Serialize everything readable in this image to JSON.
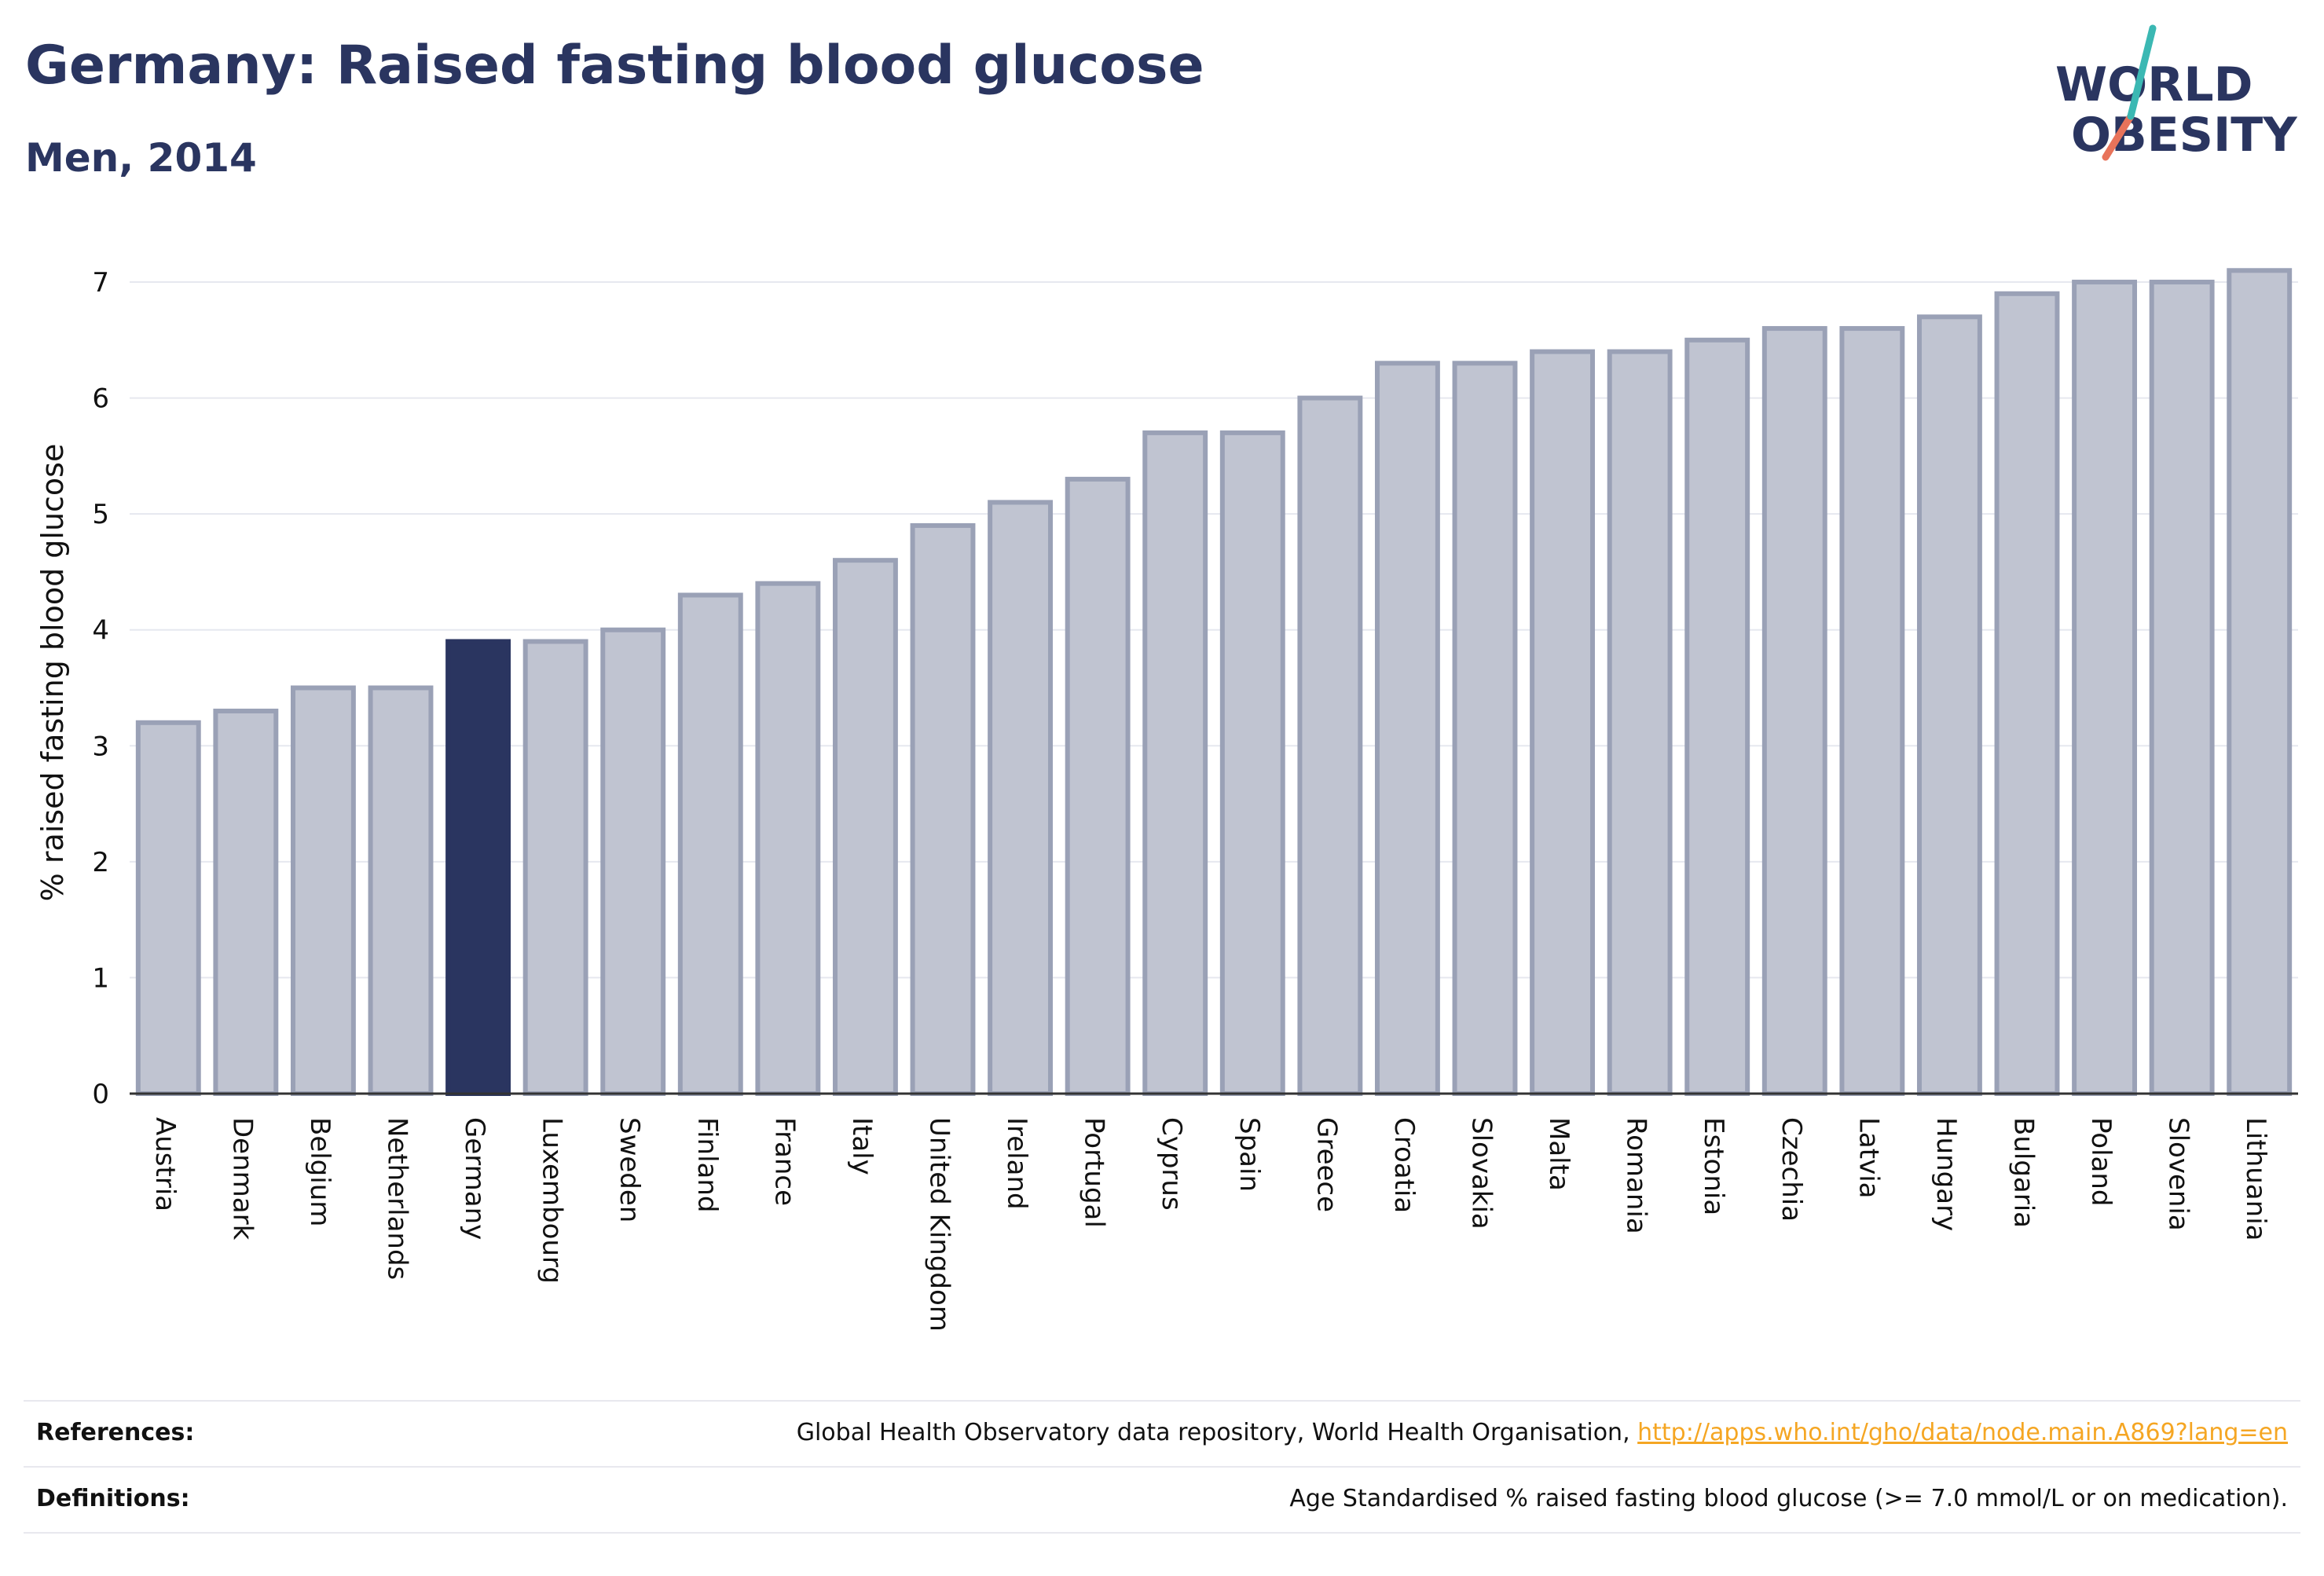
{
  "title": "Germany: Raised fasting blood glucose",
  "subtitle": "Men, 2014",
  "logo": {
    "line1": "WORLD",
    "line2": "OBESITY"
  },
  "colors": {
    "highlight": "#2a3560",
    "bar": "#c0c4d1",
    "bar_border": "#9aa1b6",
    "accent_teal": "#3bb8b3",
    "accent_coral": "#e8735a",
    "link": "#f5a623"
  },
  "chart_data": {
    "type": "bar",
    "title": "Germany: Raised fasting blood glucose",
    "subtitle": "Men, 2014",
    "xlabel": "",
    "ylabel": "% raised fasting blood glucose",
    "ylim": [
      0,
      7.4
    ],
    "yticks": [
      0,
      1,
      2,
      3,
      4,
      5,
      6,
      7
    ],
    "highlight": "Germany",
    "grid": true,
    "categories": [
      "Austria",
      "Denmark",
      "Belgium",
      "Netherlands",
      "Germany",
      "Luxembourg",
      "Sweden",
      "Finland",
      "France",
      "Italy",
      "United Kingdom",
      "Ireland",
      "Portugal",
      "Cyprus",
      "Spain",
      "Greece",
      "Croatia",
      "Slovakia",
      "Malta",
      "Romania",
      "Estonia",
      "Czechia",
      "Latvia",
      "Hungary",
      "Bulgaria",
      "Poland",
      "Slovenia",
      "Lithuania"
    ],
    "values": [
      3.2,
      3.3,
      3.5,
      3.5,
      3.9,
      3.9,
      4.0,
      4.3,
      4.4,
      4.6,
      4.9,
      5.1,
      5.3,
      5.7,
      5.7,
      6.0,
      6.3,
      6.3,
      6.4,
      6.4,
      6.5,
      6.6,
      6.6,
      6.7,
      6.9,
      7.0,
      7.0,
      7.1
    ]
  },
  "footer": {
    "references_label": "References:",
    "references_text": "Global Health Observatory data repository, World Health Organisation, ",
    "references_link": "http://apps.who.int/gho/data/node.main.A869?lang=en",
    "definitions_label": "Definitions:",
    "definitions_text": "Age Standardised % raised fasting blood glucose (>= 7.0 mmol/L or on medication)."
  }
}
